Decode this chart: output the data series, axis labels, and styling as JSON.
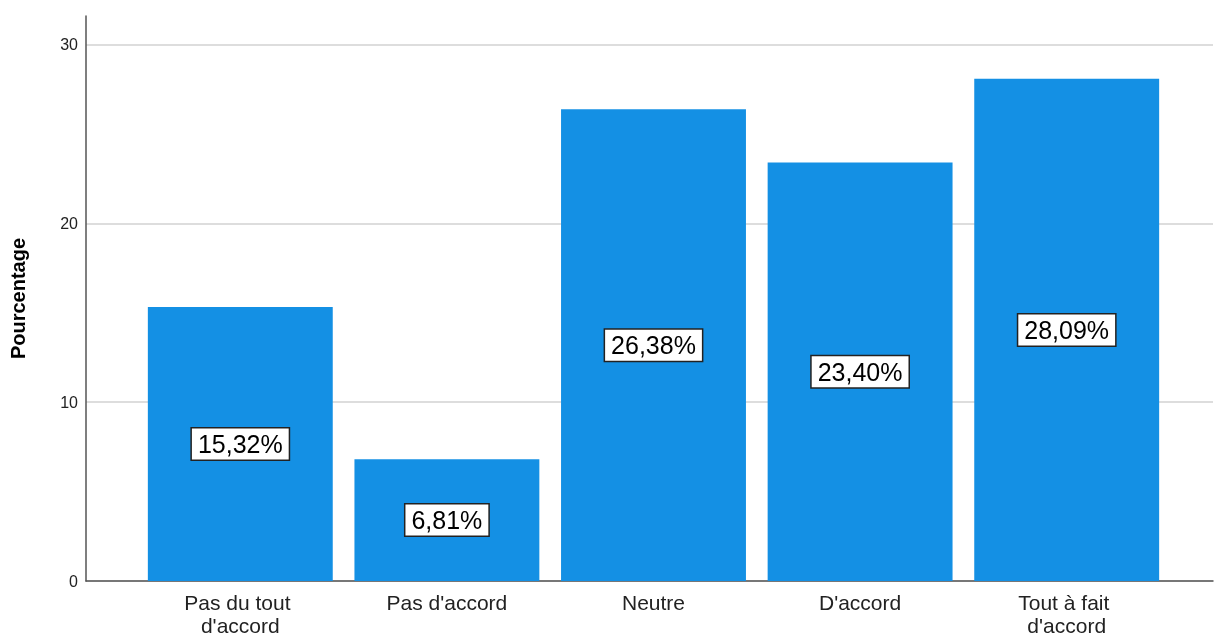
{
  "chart_data": {
    "type": "bar",
    "ylabel": "Pourcentage",
    "categories": [
      "Pas du tout d'accord",
      "Pas d'accord",
      "Neutre",
      "D'accord",
      "Tout à fait d'accord"
    ],
    "values": [
      15.32,
      6.81,
      26.38,
      23.4,
      28.09
    ],
    "value_labels": [
      "15,32%",
      "6,81%",
      "26,38%",
      "23,40%",
      "28,09%"
    ],
    "color": "#1490e4",
    "ylim": [
      0,
      31.6
    ],
    "yticks": [
      0,
      10,
      20,
      30
    ],
    "grid": "y"
  }
}
